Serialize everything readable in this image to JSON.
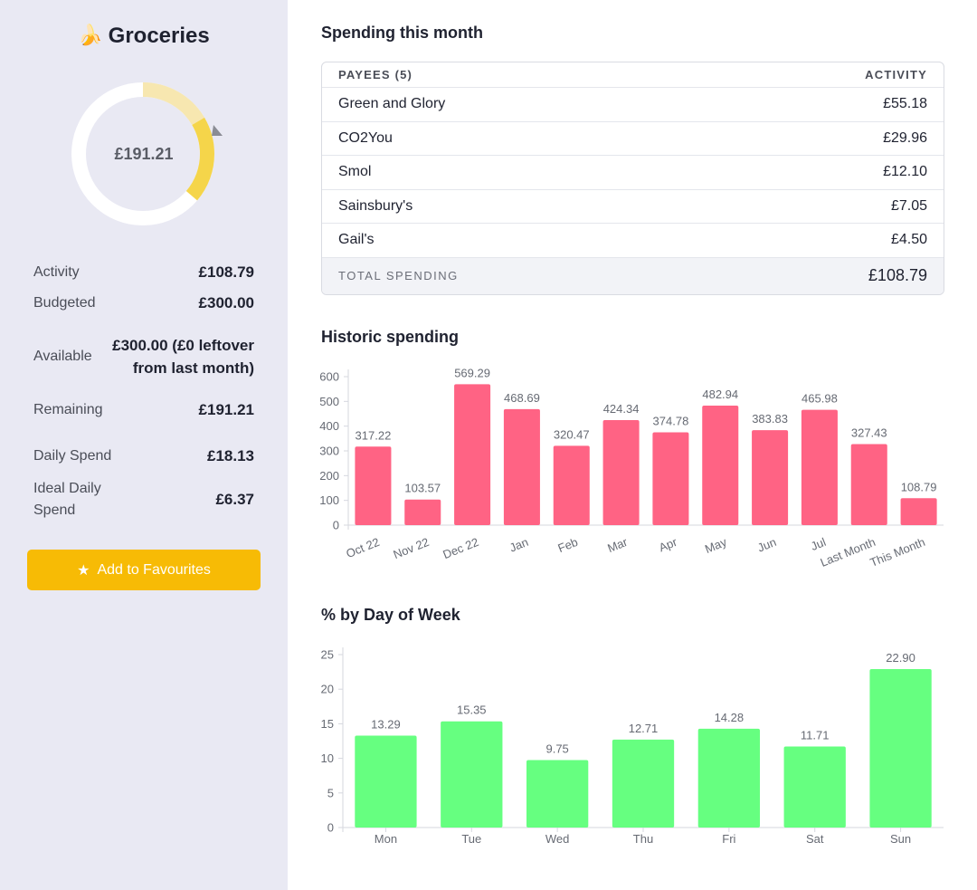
{
  "sidebar": {
    "title": "Groceries",
    "emoji": "🍌",
    "donut": {
      "center_label": "£191.21",
      "activity_fraction": 0.3626,
      "colors": {
        "ring": "#ffffff",
        "spent": "#f5d54a",
        "budget_track": "#f7e7b0",
        "marker": "#8a8c94"
      }
    },
    "stats": [
      {
        "label": "Activity",
        "value": "£108.79"
      },
      {
        "label": "Budgeted",
        "value": "£300.00"
      },
      {
        "label": "Available",
        "value": "£300.00 (£0 leftover from last month)"
      },
      {
        "label": "Remaining",
        "value": "£191.21"
      },
      {
        "label": "Daily Spend",
        "value": "£18.13"
      },
      {
        "label": "Ideal Daily Spend",
        "value": "£6.37"
      }
    ],
    "favourite_button": {
      "label": "Add to Favourites",
      "icon": "star-icon",
      "color": "#f7bb05"
    }
  },
  "spending": {
    "title": "Spending this month",
    "header_payees": "PAYEES (5)",
    "header_activity": "ACTIVITY",
    "rows": [
      {
        "payee": "Green and Glory",
        "amount": "£55.18"
      },
      {
        "payee": "CO2You",
        "amount": "£29.96"
      },
      {
        "payee": "Smol",
        "amount": "£12.10"
      },
      {
        "payee": "Sainsbury's",
        "amount": "£7.05"
      },
      {
        "payee": "Gail's",
        "amount": "£4.50"
      }
    ],
    "total_label": "TOTAL SPENDING",
    "total_value": "£108.79"
  },
  "historic": {
    "title": "Historic spending"
  },
  "weekday": {
    "title": "% by Day of Week"
  },
  "chart_data": [
    {
      "type": "bar",
      "categories": [
        "Oct 22",
        "Nov 22",
        "Dec 22",
        "Jan",
        "Feb",
        "Mar",
        "Apr",
        "May",
        "Jun",
        "Jul",
        "Last Month",
        "This Month"
      ],
      "values": [
        317.22,
        103.57,
        569.29,
        468.69,
        320.47,
        424.34,
        374.78,
        482.94,
        383.83,
        465.98,
        327.43,
        108.79
      ],
      "labels": [
        "317.22",
        "103.57",
        "569.29",
        "468.69",
        "320.47",
        "424.34",
        "374.78",
        "482.94",
        "383.83",
        "465.98",
        "327.43",
        "108.79"
      ],
      "yticks": [
        "0",
        "100",
        "200",
        "300",
        "400",
        "500",
        "600"
      ],
      "ylim": [
        0,
        600
      ],
      "color": "#ff6384"
    },
    {
      "type": "bar",
      "categories": [
        "Mon",
        "Tue",
        "Wed",
        "Thu",
        "Fri",
        "Sat",
        "Sun"
      ],
      "values": [
        13.29,
        15.35,
        9.75,
        12.71,
        14.28,
        11.71,
        22.9
      ],
      "labels": [
        "13.29",
        "15.35",
        "9.75",
        "12.71",
        "14.28",
        "11.71",
        "22.90"
      ],
      "yticks": [
        "0",
        "5",
        "10",
        "15",
        "20",
        "25"
      ],
      "ylim": [
        0,
        25
      ],
      "color": "#66ff80"
    }
  ]
}
